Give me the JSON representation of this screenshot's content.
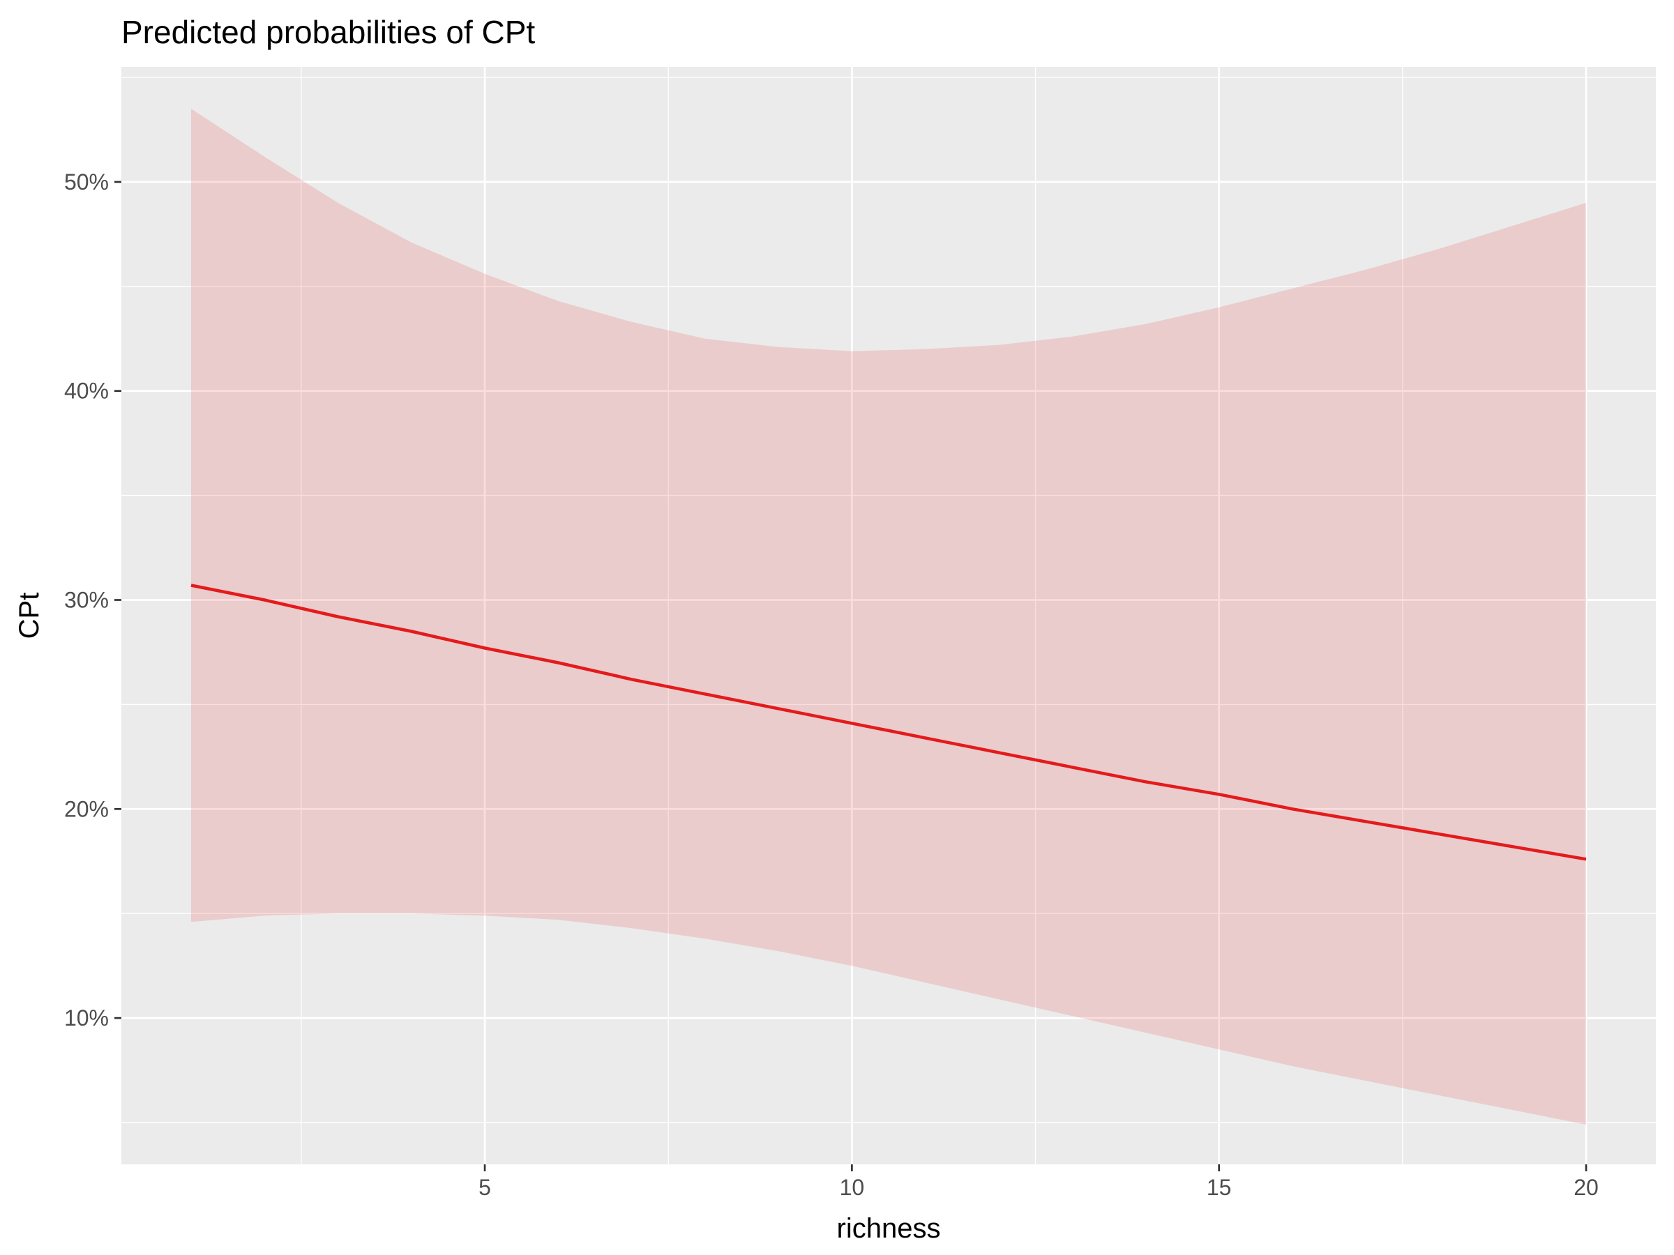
{
  "chart_data": {
    "type": "line",
    "title": "Predicted probabilities of CPt",
    "xlabel": "richness",
    "ylabel": "CPt",
    "xlim": [
      0.05,
      20.95
    ],
    "ylim": [
      0.03,
      0.555
    ],
    "x_ticks": [
      5,
      10,
      15,
      20
    ],
    "x_tick_labels": [
      "5",
      "10",
      "15",
      "20"
    ],
    "x_minor_ticks": [
      2.5,
      7.5,
      12.5,
      17.5
    ],
    "y_ticks": [
      0.1,
      0.2,
      0.3,
      0.4,
      0.5
    ],
    "y_tick_labels": [
      "10%",
      "20%",
      "30%",
      "40%",
      "50%"
    ],
    "y_minor_ticks": [
      0.05,
      0.15,
      0.25,
      0.35,
      0.45,
      0.55
    ],
    "grid": true,
    "colors": {
      "panel": "#ebebeb",
      "line": "#e41a1c",
      "ribbon": "#e41a1c",
      "ribbon_opacity": 0.15
    },
    "series": [
      {
        "x": [
          1,
          2,
          3,
          4,
          5,
          6,
          7,
          8,
          9,
          10,
          11,
          12,
          13,
          14,
          15,
          16,
          17,
          18,
          19,
          20
        ],
        "y": [
          0.307,
          0.3,
          0.292,
          0.285,
          0.277,
          0.27,
          0.262,
          0.255,
          0.248,
          0.241,
          0.234,
          0.227,
          0.22,
          0.213,
          0.207,
          0.2,
          0.194,
          0.188,
          0.182,
          0.176
        ],
        "lower": [
          0.146,
          0.149,
          0.15,
          0.15,
          0.149,
          0.147,
          0.143,
          0.138,
          0.132,
          0.125,
          0.117,
          0.109,
          0.101,
          0.093,
          0.085,
          0.077,
          0.07,
          0.063,
          0.056,
          0.049
        ],
        "upper": [
          0.535,
          0.512,
          0.49,
          0.471,
          0.456,
          0.443,
          0.433,
          0.425,
          0.421,
          0.419,
          0.42,
          0.422,
          0.426,
          0.432,
          0.44,
          0.449,
          0.458,
          0.468,
          0.479,
          0.49
        ]
      }
    ]
  }
}
